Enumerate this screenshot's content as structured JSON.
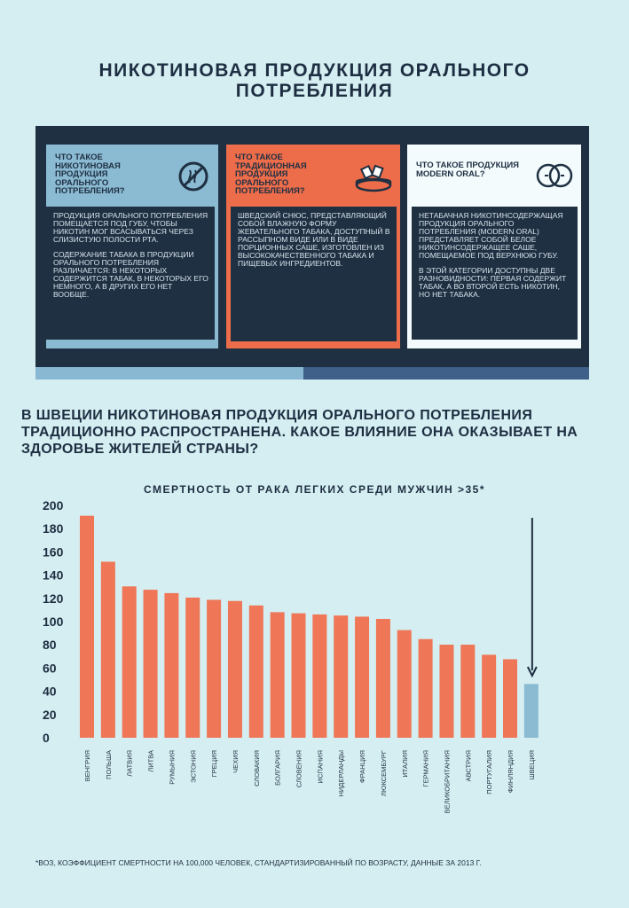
{
  "title": {
    "line1": "НИКОТИНОВАЯ ПРОДУКЦИЯ ОРАЛЬНОГО",
    "line2": "ПОТРЕБЛЕНИЯ"
  },
  "columns": [
    {
      "heading": "ЧТО ТАКОЕ НИКОТИНОВАЯ ПРОДУКЦИЯ ОРАЛЬНОГО ПОТРЕБЛЕНИЯ?",
      "icon": "no-smoking-icon",
      "paragraphs": [
        "ПРОДУКЦИЯ ОРАЛЬНОГО ПОТРЕБЛЕНИЯ ПОМЕЩАЕТСЯ ПОД ГУБУ, ЧТОБЫ НИКОТИН МОГ ВСАСЫВАТЬСЯ ЧЕРЕЗ СЛИЗИСТУЮ ПОЛОСТИ РТА.",
        "СОДЕРЖАНИЕ ТАБАКА В ПРОДУКЦИИ ОРАЛЬНОГО ПОТРЕБЛЕНИЯ РАЗЛИЧАЕТСЯ: В НЕКОТОРЫХ СОДЕРЖИТСЯ ТАБАК, В НЕКОТОРЫХ ЕГО НЕМНОГО, А В ДРУГИХ ЕГО НЕТ ВООБЩЕ."
      ]
    },
    {
      "heading": "ЧТО ТАКОЕ ТРАДИЦИОННАЯ ПРОДУКЦИЯ ОРАЛЬНОГО ПОТРЕБЛЕНИЯ?",
      "icon": "snus-tin-icon",
      "paragraphs": [
        "ШВЕДСКИЙ СНЮС, ПРЕДСТАВЛЯЮЩИЙ СОБОЙ ВЛАЖНУЮ ФОРМУ ЖЕВАТЕЛЬНОГО ТАБАКА, ДОСТУПНЫЙ В РАССЫПНОМ ВИДЕ ИЛИ В ВИДЕ ПОРЦИОННЫХ САШЕ, ИЗГОТОВЛЕН ИЗ ВЫСОКОКАЧЕСТВЕННОГО ТАБАКА И ПИЩЕВЫХ ИНГРЕДИЕНТОВ."
      ]
    },
    {
      "heading": "ЧТО ТАКОЕ ПРОДУКЦИЯ MODERN ORAL?",
      "icon": "pouches-icon",
      "paragraphs": [
        "НЕТАБАЧНАЯ НИКОТИНСОДЕРЖАЩАЯ ПРОДУКЦИЯ ОРАЛЬНОГО ПОТРЕБЛЕНИЯ (MODERN ORAL) ПРЕДСТАВЛЯЕТ СОБОЙ БЕЛОЕ НИКОТИНСОДЕРЖАЩЕЕ САШЕ, ПОМЕЩАЕМОЕ ПОД ВЕРХНЮЮ ГУБУ.",
        "В ЭТОЙ КАТЕГОРИИ ДОСТУПНЫ ДВЕ РАЗНОВИДНОСТИ: ПЕРВАЯ СОДЕРЖИТ ТАБАК, А ВО ВТОРОЙ ЕСТЬ НИКОТИН, НО НЕТ ТАБАКА."
      ]
    }
  ],
  "question": "В ШВЕЦИИ НИКОТИНОВАЯ ПРОДУКЦИЯ ОРАЛЬНОГО ПОТРЕБЛЕНИЯ ТРАДИЦИОННО РАСПРОСТРАНЕНА. КАКОЕ ВЛИЯНИЕ ОНА ОКАЗЫВАЕТ НА ЗДОРОВЬЕ ЖИТЕЛЕЙ СТРАНЫ?",
  "colors": {
    "bar": "#ef7656",
    "highlight": "#8bbad3",
    "dark": "#1d2e42"
  },
  "chart_data": {
    "type": "bar",
    "title": "СМЕРТНОСТЬ ОТ РАКА ЛЕГКИХ СРЕДИ МУЖЧИН  >35*",
    "categories": [
      "ВЕНГРИЯ",
      "ПОЛЬША",
      "ЛАТВИЯ",
      "ЛИТВА",
      "РУМЫНИЯ",
      "ЭСТОНИЯ",
      "ГРЕЦИЯ",
      "ЧЕХИЯ",
      "СЛОВАКИЯ",
      "БОЛГАРИЯ",
      "СЛОВЕНИЯ",
      "ИСПАНИЯ",
      "НИДЕРЛАНДЫ",
      "ФРАНЦИЯ",
      "ЛЮКСЕМБУРГ",
      "ИТАЛИЯ",
      "ГЕРМАНИЯ",
      "ВЕЛИКОБРИТАНИЯ",
      "АВСТРИЯ",
      "ПОРТУГАЛИЯ",
      "ФИНЛЯНДИЯ",
      "ШВЕЦИЯ"
    ],
    "values": [
      198,
      157,
      135,
      132,
      129,
      125,
      123,
      122,
      118,
      112,
      111,
      110,
      109,
      108,
      106,
      96,
      88,
      83,
      83,
      74,
      70,
      48
    ],
    "highlight": "ШВЕЦИЯ",
    "yticks": [
      0,
      20,
      40,
      60,
      80,
      100,
      120,
      140,
      160,
      180,
      200
    ],
    "ylim": [
      0,
      208
    ],
    "xlabel": "",
    "ylabel": "",
    "grid": false,
    "annotation": "arrow-down-to-highlight"
  },
  "footnote": "*ВОЗ, КОЭФФИЦИЕНТ СМЕРТНОСТИ НА 100,000 ЧЕЛОВЕК, СТАНДАРТИЗИРОВАННЫЙ ПО ВОЗРАСТУ, ДАННЫЕ ЗА 2013 г."
}
